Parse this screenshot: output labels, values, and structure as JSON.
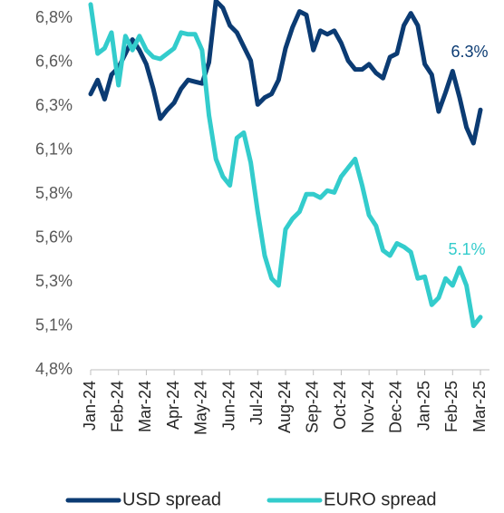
{
  "chart_data": {
    "type": "line",
    "categories": [
      "Jan-24",
      null,
      null,
      null,
      "Feb-24",
      null,
      null,
      null,
      "Mar-24",
      null,
      null,
      null,
      "Apr-24",
      null,
      null,
      null,
      "May-24",
      null,
      null,
      null,
      "Jun-24",
      null,
      null,
      null,
      "Jul-24",
      null,
      null,
      null,
      "Aug-24",
      null,
      null,
      null,
      "Sep-24",
      null,
      null,
      null,
      "Oct-24",
      null,
      null,
      null,
      "Nov-24",
      null,
      null,
      null,
      "Dec-24",
      null,
      null,
      null,
      "Jan-25",
      null,
      null,
      null,
      "Feb-25",
      null,
      null,
      null,
      "Mar-25"
    ],
    "series": [
      {
        "name": "USD spread",
        "color": "#0b3b73",
        "values": [
          6.37,
          6.45,
          6.34,
          6.48,
          6.52,
          6.6,
          6.68,
          6.62,
          6.54,
          6.4,
          6.23,
          6.28,
          6.32,
          6.4,
          6.45,
          6.44,
          6.43,
          6.55,
          6.9,
          6.86,
          6.76,
          6.72,
          6.64,
          6.56,
          6.31,
          6.35,
          6.37,
          6.45,
          6.63,
          6.75,
          6.84,
          6.82,
          6.62,
          6.73,
          6.71,
          6.73,
          6.66,
          6.56,
          6.51,
          6.51,
          6.54,
          6.49,
          6.46,
          6.58,
          6.6,
          6.76,
          6.83,
          6.76,
          6.54,
          6.48,
          6.27,
          6.38,
          6.5,
          6.35,
          6.18,
          6.09,
          6.28
        ]
      },
      {
        "name": "EURO spread",
        "color": "#33cccc",
        "values": [
          6.88,
          6.6,
          6.63,
          6.72,
          6.42,
          6.7,
          6.62,
          6.7,
          6.62,
          6.58,
          6.57,
          6.6,
          6.63,
          6.72,
          6.71,
          6.71,
          6.62,
          6.25,
          6.0,
          5.9,
          5.85,
          6.12,
          6.15,
          5.98,
          5.7,
          5.45,
          5.32,
          5.28,
          5.6,
          5.66,
          5.7,
          5.8,
          5.8,
          5.78,
          5.82,
          5.81,
          5.9,
          5.95,
          6.0,
          5.85,
          5.68,
          5.62,
          5.48,
          5.45,
          5.52,
          5.5,
          5.47,
          5.32,
          5.33,
          5.17,
          5.21,
          5.32,
          5.28,
          5.38,
          5.28,
          5.05,
          5.1
        ]
      }
    ],
    "ylim": [
      4.8,
      6.9
    ],
    "yticks": [
      {
        "value": 4.8,
        "label": "4,8%"
      },
      {
        "value": 5.05,
        "label": "5,1%"
      },
      {
        "value": 5.3,
        "label": "5,3%"
      },
      {
        "value": 5.55,
        "label": "5,6%"
      },
      {
        "value": 5.8,
        "label": "5,8%"
      },
      {
        "value": 6.05,
        "label": "6,1%"
      },
      {
        "value": 6.3,
        "label": "6,3%"
      },
      {
        "value": 6.55,
        "label": "6,6%"
      },
      {
        "value": 6.8,
        "label": "6,8%"
      }
    ],
    "annotations": [
      {
        "text": "6.3%",
        "color": "#0b3b73"
      },
      {
        "text": "5.1%",
        "color": "#33cccc"
      }
    ],
    "legend": "bottom"
  }
}
